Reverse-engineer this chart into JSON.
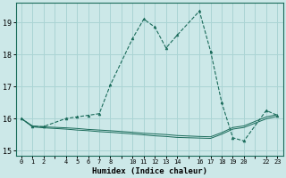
{
  "xlabel": "Humidex (Indice chaleur)",
  "background_color": "#cce8e8",
  "grid_color": "#aad4d4",
  "line_color": "#1a6b5a",
  "xlim": [
    -0.5,
    23.5
  ],
  "ylim": [
    14.85,
    19.6
  ],
  "yticks": [
    15,
    16,
    17,
    18,
    19
  ],
  "xtick_show": [
    0,
    1,
    2,
    4,
    5,
    6,
    7,
    8,
    10,
    11,
    12,
    13,
    14,
    16,
    17,
    18,
    19,
    20,
    22,
    23
  ],
  "series1_x": [
    0,
    1,
    2,
    4,
    5,
    6,
    7,
    8,
    10,
    11,
    12,
    13,
    14,
    16,
    17,
    18,
    19,
    20,
    22,
    23
  ],
  "series1_y": [
    16.0,
    15.75,
    15.75,
    16.0,
    16.05,
    16.1,
    16.15,
    17.05,
    18.5,
    19.1,
    18.85,
    18.2,
    18.6,
    19.35,
    18.1,
    16.5,
    15.4,
    15.3,
    16.25,
    16.1
  ],
  "series2_x": [
    0,
    1,
    2,
    4,
    5,
    6,
    7,
    8,
    10,
    11,
    12,
    13,
    14,
    16,
    17,
    18,
    19,
    20,
    22,
    23
  ],
  "series2_y": [
    16.0,
    15.77,
    15.74,
    15.71,
    15.69,
    15.66,
    15.64,
    15.62,
    15.57,
    15.54,
    15.52,
    15.5,
    15.47,
    15.44,
    15.43,
    15.56,
    15.72,
    15.77,
    16.05,
    16.12
  ],
  "series3_x": [
    0,
    1,
    2,
    4,
    5,
    6,
    7,
    8,
    10,
    11,
    12,
    13,
    14,
    16,
    17,
    18,
    19,
    20,
    22,
    23
  ],
  "series3_y": [
    16.0,
    15.74,
    15.71,
    15.67,
    15.64,
    15.62,
    15.59,
    15.57,
    15.52,
    15.49,
    15.46,
    15.44,
    15.41,
    15.39,
    15.38,
    15.51,
    15.67,
    15.72,
    15.99,
    16.07
  ]
}
